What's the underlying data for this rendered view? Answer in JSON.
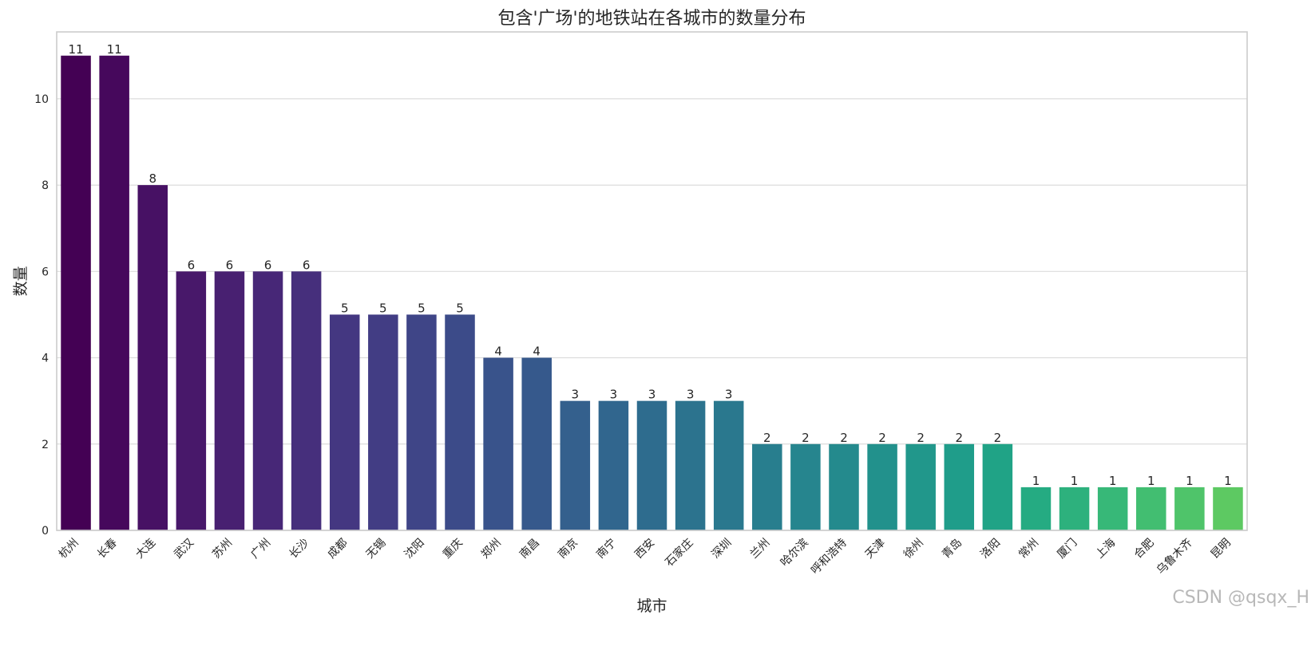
{
  "watermark": "CSDN @qsqx_H",
  "chart_data": {
    "type": "bar",
    "title": "包含'广场'的地铁站在各城市的数量分布",
    "xlabel": "城市",
    "ylabel": "数量",
    "ylim": [
      0,
      11.55
    ],
    "yticks": [
      0,
      2,
      4,
      6,
      8,
      10
    ],
    "grid": true,
    "categories": [
      "杭州",
      "长春",
      "大连",
      "武汉",
      "苏州",
      "广州",
      "长沙",
      "成都",
      "无锡",
      "沈阳",
      "重庆",
      "郑州",
      "南昌",
      "南京",
      "南宁",
      "西安",
      "石家庄",
      "深圳",
      "兰州",
      "哈尔滨",
      "呼和浩特",
      "天津",
      "徐州",
      "青岛",
      "洛阳",
      "常州",
      "厦门",
      "上海",
      "合肥",
      "乌鲁木齐",
      "昆明"
    ],
    "values": [
      11,
      11,
      8,
      6,
      6,
      6,
      6,
      5,
      5,
      5,
      5,
      4,
      4,
      3,
      3,
      3,
      3,
      3,
      2,
      2,
      2,
      2,
      2,
      2,
      2,
      1,
      1,
      1,
      1,
      1,
      1
    ],
    "colors": [
      "#440154",
      "#46085c",
      "#471164",
      "#48186a",
      "#482071",
      "#472777",
      "#462f7c",
      "#443781",
      "#423d84",
      "#3f4587",
      "#3c4b89",
      "#39538b",
      "#36598c",
      "#34608d",
      "#31668e",
      "#2e6c8e",
      "#2c738e",
      "#2a788e",
      "#287e8e",
      "#26858e",
      "#248a8d",
      "#22918c",
      "#21978b",
      "#1f9d8a",
      "#20a386",
      "#25ab82",
      "#2db17d",
      "#37b878",
      "#42be71",
      "#4fc46a",
      "#5dc962"
    ]
  }
}
